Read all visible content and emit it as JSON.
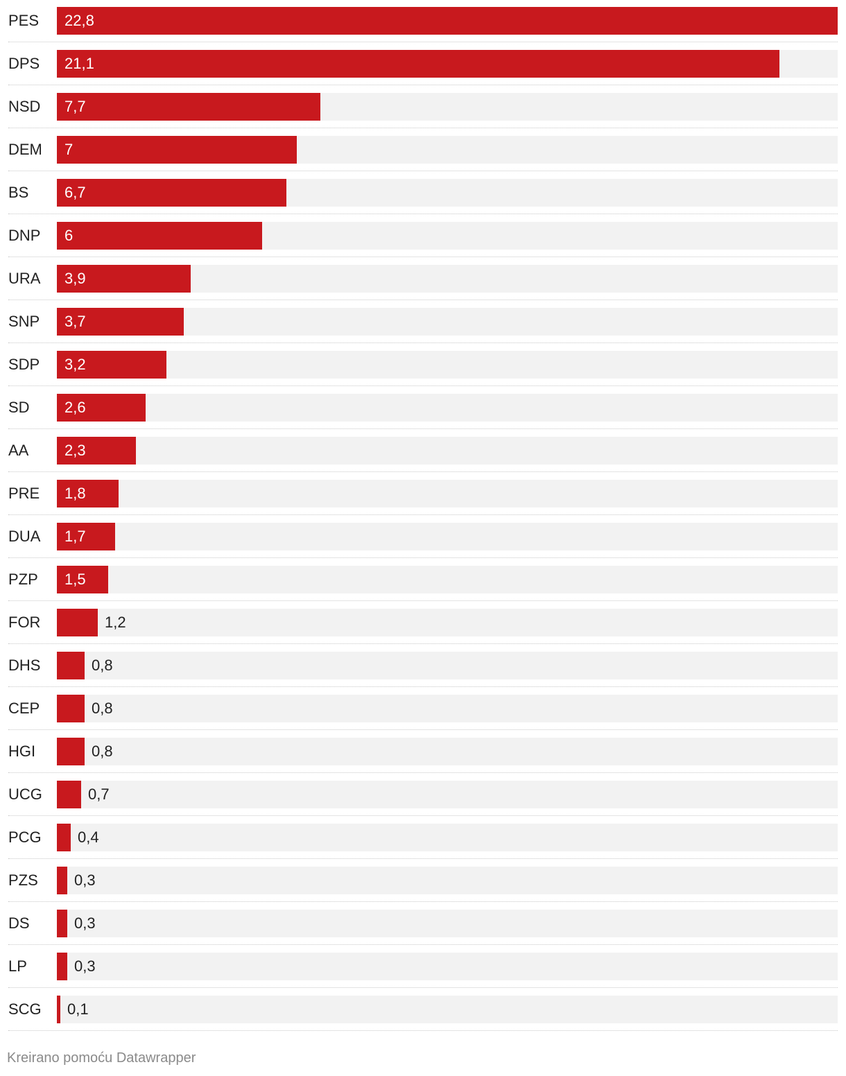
{
  "colors": {
    "bar": "#c8191e",
    "track": "#f2f2f2"
  },
  "chart_data": {
    "type": "bar",
    "orientation": "horizontal",
    "title": "",
    "xlabel": "",
    "ylabel": "",
    "xlim": [
      0,
      22.8
    ],
    "categories": [
      "PES",
      "DPS",
      "NSD",
      "DEM",
      "BS",
      "DNP",
      "URA",
      "SNP",
      "SDP",
      "SD",
      "AA",
      "PRE",
      "DUA",
      "PZP",
      "FOR",
      "DHS",
      "CEP",
      "HGI",
      "UCG",
      "PCG",
      "PZS",
      "DS",
      "LP",
      "SCG"
    ],
    "values": [
      22.8,
      21.1,
      7.7,
      7,
      6.7,
      6,
      3.9,
      3.7,
      3.2,
      2.6,
      2.3,
      1.8,
      1.7,
      1.5,
      1.2,
      0.8,
      0.8,
      0.8,
      0.7,
      0.4,
      0.3,
      0.3,
      0.3,
      0.1
    ],
    "value_labels": [
      "22,8",
      "21,1",
      "7,7",
      "7",
      "6,7",
      "6",
      "3,9",
      "3,7",
      "3,2",
      "2,6",
      "2,3",
      "1,8",
      "1,7",
      "1,5",
      "1,2",
      "0,8",
      "0,8",
      "0,8",
      "0,7",
      "0,4",
      "0,3",
      "0,3",
      "0,3",
      "0,1"
    ]
  },
  "footer": {
    "credit": "Kreirano pomoću Datawrapper"
  }
}
